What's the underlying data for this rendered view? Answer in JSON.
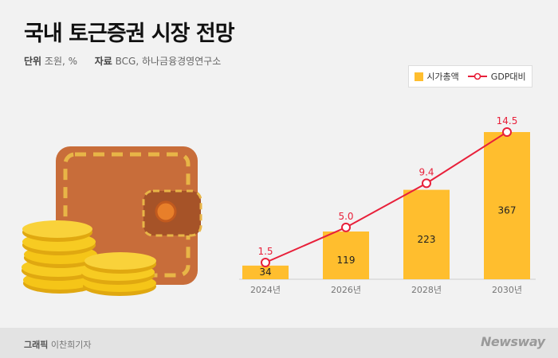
{
  "header": {
    "title": "국내 토근증권 시장 전망",
    "unit_label": "단위",
    "unit_value": "조원, %",
    "source_label": "자료",
    "source_value": "BCG, 하나금융경영연구소"
  },
  "legend": {
    "bar_label": "시가총액",
    "line_label": "GDP대비"
  },
  "footer": {
    "credit_label": "그래픽",
    "credit_name": "이찬희기자",
    "logo": "Newsway"
  },
  "colors": {
    "bar": "#FFBE2E",
    "line": "#E8203A",
    "wallet": "#C86D3A",
    "coin": "#F5C518"
  },
  "chart_data": {
    "type": "bar",
    "categories": [
      "2024년",
      "2026년",
      "2028년",
      "2030년"
    ],
    "series": [
      {
        "name": "시가총액",
        "type": "bar",
        "values": [
          34,
          119,
          223,
          367
        ]
      },
      {
        "name": "GDP대비",
        "type": "line",
        "values": [
          1.5,
          5.0,
          9.4,
          14.5
        ]
      }
    ],
    "value_labels": {
      "bar": [
        "34",
        "119",
        "223",
        "367"
      ],
      "line": [
        "1.5",
        "5.0",
        "9.4",
        "14.5"
      ]
    },
    "ylim": [
      0,
      400
    ],
    "grid": false,
    "legend_position": "top-right"
  }
}
